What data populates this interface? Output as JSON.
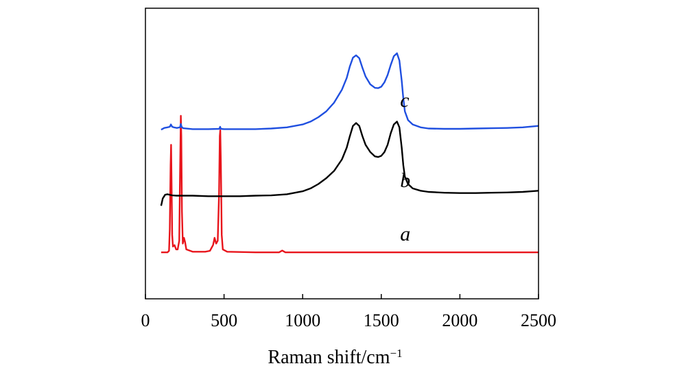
{
  "chart_data": {
    "type": "line",
    "title": "",
    "xlabel": "Raman shift/cm",
    "xlabel_superscript": "−1",
    "ylabel": "",
    "xlim": [
      0,
      2500
    ],
    "ylim": [
      0,
      10
    ],
    "x_ticks": [
      0,
      500,
      1000,
      1500,
      2000,
      2500
    ],
    "x_tick_labels": [
      "0",
      "500",
      "1000",
      "1500",
      "2000",
      "2500"
    ],
    "grid": false,
    "series": [
      {
        "name": "a",
        "label": "a",
        "color": "#e8141b",
        "label_position": [
          1620,
          2.0
        ],
        "points": [
          [
            100,
            1.6
          ],
          [
            140,
            1.6
          ],
          [
            150,
            1.65
          ],
          [
            155,
            2.4
          ],
          [
            160,
            4.6
          ],
          [
            163,
            5.3
          ],
          [
            166,
            4.2
          ],
          [
            170,
            2.2
          ],
          [
            175,
            1.8
          ],
          [
            185,
            1.85
          ],
          [
            195,
            1.7
          ],
          [
            205,
            1.7
          ],
          [
            215,
            2.0
          ],
          [
            220,
            4.2
          ],
          [
            225,
            6.3
          ],
          [
            228,
            5.6
          ],
          [
            232,
            3.0
          ],
          [
            238,
            1.9
          ],
          [
            245,
            2.1
          ],
          [
            252,
            1.95
          ],
          [
            260,
            1.7
          ],
          [
            300,
            1.62
          ],
          [
            380,
            1.62
          ],
          [
            410,
            1.65
          ],
          [
            430,
            1.85
          ],
          [
            440,
            2.1
          ],
          [
            450,
            1.9
          ],
          [
            460,
            2.0
          ],
          [
            468,
            3.6
          ],
          [
            473,
            5.6
          ],
          [
            476,
            5.8
          ],
          [
            480,
            4.6
          ],
          [
            485,
            2.2
          ],
          [
            492,
            1.7
          ],
          [
            520,
            1.62
          ],
          [
            700,
            1.6
          ],
          [
            850,
            1.6
          ],
          [
            870,
            1.66
          ],
          [
            890,
            1.6
          ],
          [
            1000,
            1.6
          ],
          [
            1500,
            1.6
          ],
          [
            2000,
            1.6
          ],
          [
            2500,
            1.6
          ]
        ]
      },
      {
        "name": "b",
        "label": "b",
        "color": "#000000",
        "label_position": [
          1620,
          3.85
        ],
        "points": [
          [
            100,
            3.2
          ],
          [
            110,
            3.45
          ],
          [
            125,
            3.58
          ],
          [
            140,
            3.6
          ],
          [
            170,
            3.56
          ],
          [
            200,
            3.55
          ],
          [
            300,
            3.55
          ],
          [
            400,
            3.53
          ],
          [
            500,
            3.53
          ],
          [
            600,
            3.53
          ],
          [
            700,
            3.55
          ],
          [
            800,
            3.56
          ],
          [
            900,
            3.6
          ],
          [
            1000,
            3.7
          ],
          [
            1050,
            3.8
          ],
          [
            1100,
            3.95
          ],
          [
            1150,
            4.15
          ],
          [
            1200,
            4.4
          ],
          [
            1250,
            4.8
          ],
          [
            1280,
            5.2
          ],
          [
            1300,
            5.6
          ],
          [
            1320,
            5.95
          ],
          [
            1340,
            6.05
          ],
          [
            1360,
            5.95
          ],
          [
            1380,
            5.6
          ],
          [
            1400,
            5.3
          ],
          [
            1430,
            5.05
          ],
          [
            1460,
            4.9
          ],
          [
            1480,
            4.88
          ],
          [
            1500,
            4.92
          ],
          [
            1520,
            5.05
          ],
          [
            1540,
            5.3
          ],
          [
            1560,
            5.7
          ],
          [
            1580,
            6.0
          ],
          [
            1600,
            6.1
          ],
          [
            1615,
            5.9
          ],
          [
            1630,
            5.2
          ],
          [
            1640,
            4.6
          ],
          [
            1650,
            4.2
          ],
          [
            1670,
            3.95
          ],
          [
            1700,
            3.8
          ],
          [
            1750,
            3.72
          ],
          [
            1800,
            3.68
          ],
          [
            1900,
            3.65
          ],
          [
            2000,
            3.64
          ],
          [
            2100,
            3.64
          ],
          [
            2200,
            3.65
          ],
          [
            2300,
            3.66
          ],
          [
            2400,
            3.68
          ],
          [
            2500,
            3.72
          ]
        ]
      },
      {
        "name": "c",
        "label": "c",
        "color": "#1f4fe0",
        "label_position": [
          1620,
          6.6
        ],
        "points": [
          [
            100,
            5.82
          ],
          [
            120,
            5.88
          ],
          [
            140,
            5.9
          ],
          [
            155,
            5.92
          ],
          [
            162,
            6.0
          ],
          [
            170,
            5.92
          ],
          [
            180,
            5.9
          ],
          [
            200,
            5.88
          ],
          [
            220,
            5.9
          ],
          [
            225,
            6.02
          ],
          [
            230,
            5.92
          ],
          [
            240,
            5.87
          ],
          [
            300,
            5.84
          ],
          [
            400,
            5.84
          ],
          [
            470,
            5.85
          ],
          [
            475,
            5.92
          ],
          [
            480,
            5.85
          ],
          [
            500,
            5.84
          ],
          [
            600,
            5.84
          ],
          [
            700,
            5.84
          ],
          [
            800,
            5.86
          ],
          [
            900,
            5.9
          ],
          [
            1000,
            6.0
          ],
          [
            1050,
            6.1
          ],
          [
            1100,
            6.25
          ],
          [
            1150,
            6.45
          ],
          [
            1200,
            6.75
          ],
          [
            1250,
            7.2
          ],
          [
            1280,
            7.6
          ],
          [
            1300,
            8.0
          ],
          [
            1320,
            8.3
          ],
          [
            1340,
            8.38
          ],
          [
            1360,
            8.28
          ],
          [
            1380,
            7.95
          ],
          [
            1400,
            7.65
          ],
          [
            1430,
            7.38
          ],
          [
            1460,
            7.26
          ],
          [
            1480,
            7.25
          ],
          [
            1500,
            7.3
          ],
          [
            1520,
            7.45
          ],
          [
            1540,
            7.7
          ],
          [
            1560,
            8.05
          ],
          [
            1580,
            8.35
          ],
          [
            1600,
            8.45
          ],
          [
            1615,
            8.2
          ],
          [
            1630,
            7.5
          ],
          [
            1640,
            6.9
          ],
          [
            1650,
            6.45
          ],
          [
            1670,
            6.15
          ],
          [
            1700,
            6.0
          ],
          [
            1750,
            5.9
          ],
          [
            1800,
            5.86
          ],
          [
            1900,
            5.85
          ],
          [
            2000,
            5.85
          ],
          [
            2100,
            5.86
          ],
          [
            2200,
            5.87
          ],
          [
            2300,
            5.88
          ],
          [
            2400,
            5.9
          ],
          [
            2500,
            5.95
          ]
        ]
      }
    ]
  }
}
